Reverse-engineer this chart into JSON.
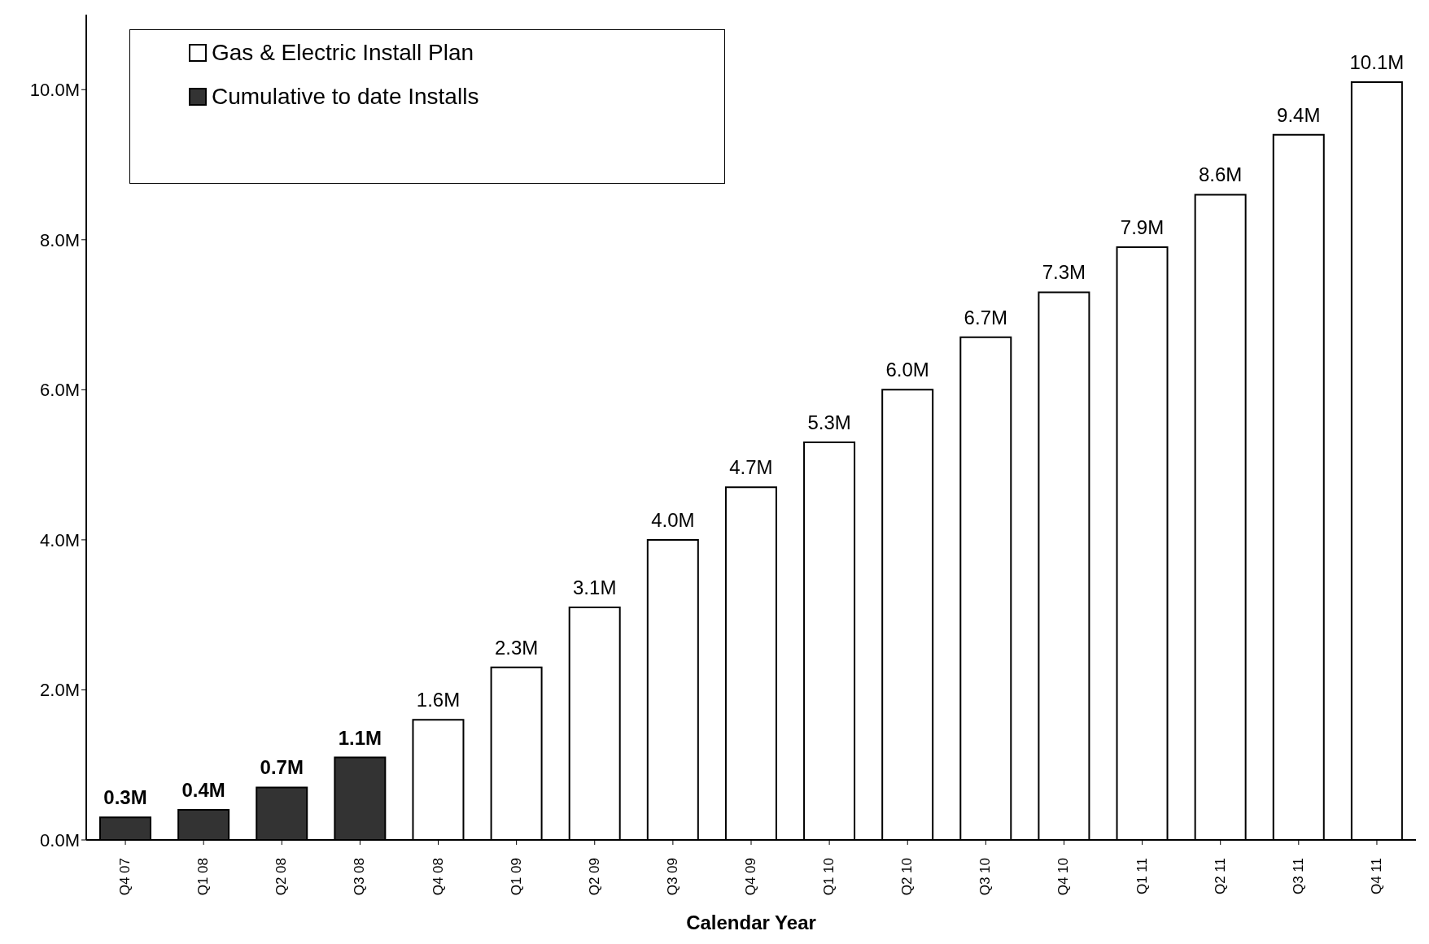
{
  "chart_data": {
    "type": "bar",
    "xlabel": "Calendar Year",
    "categories": [
      "Q4 07",
      "Q1 08",
      "Q2 08",
      "Q3 08",
      "Q4 08",
      "Q1 09",
      "Q2 09",
      "Q3 09",
      "Q4 09",
      "Q1 10",
      "Q2 10",
      "Q3 10",
      "Q4 10",
      "Q1 11",
      "Q2 11",
      "Q3 11",
      "Q4 11"
    ],
    "series": [
      {
        "name": "Gas & Electric Install Plan",
        "color": "#ffffff",
        "values": [
          null,
          null,
          null,
          null,
          1.6,
          2.3,
          3.1,
          4.0,
          4.7,
          5.3,
          6.0,
          6.7,
          7.3,
          7.9,
          8.6,
          9.4,
          10.1
        ],
        "value_labels": [
          null,
          null,
          null,
          null,
          "1.6M",
          "2.3M",
          "3.1M",
          "4.0M",
          "4.7M",
          "5.3M",
          "6.0M",
          "6.7M",
          "7.3M",
          "7.9M",
          "8.6M",
          "9.4M",
          "10.1M"
        ]
      },
      {
        "name": "Cumulative to date Installs",
        "color": "#333333",
        "values": [
          0.3,
          0.4,
          0.7,
          1.1,
          null,
          null,
          null,
          null,
          null,
          null,
          null,
          null,
          null,
          null,
          null,
          null,
          null
        ],
        "value_labels": [
          "0.3M",
          "0.4M",
          "0.7M",
          "1.1M",
          null,
          null,
          null,
          null,
          null,
          null,
          null,
          null,
          null,
          null,
          null,
          null,
          null
        ]
      }
    ],
    "stacked": true,
    "ylim": [
      0,
      11
    ],
    "yticks": [
      {
        "value": 0,
        "label": "0.0M"
      },
      {
        "value": 2,
        "label": "2.0M"
      },
      {
        "value": 4,
        "label": "4.0M"
      },
      {
        "value": 6,
        "label": "6.0M"
      },
      {
        "value": 8,
        "label": "8.0M"
      },
      {
        "value": 10,
        "label": "10.0M"
      }
    ],
    "grid": false,
    "legend": "top left"
  }
}
